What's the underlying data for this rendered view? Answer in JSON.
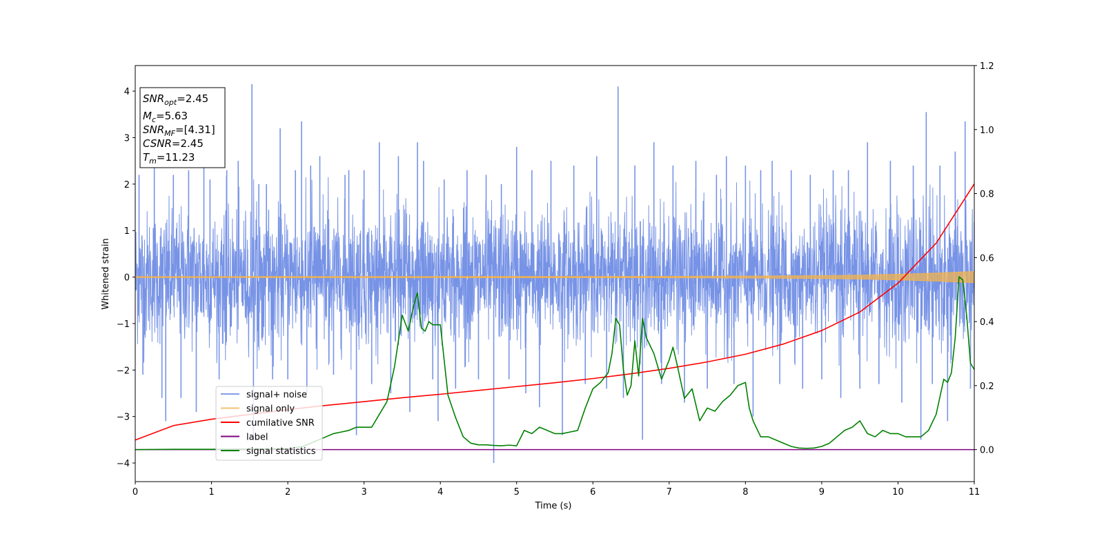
{
  "chart_data": {
    "type": "line",
    "xlabel": "Time (s)",
    "ylabel": "Whitened strain",
    "xlim": [
      0,
      11
    ],
    "ylim_left": [
      -4.4,
      4.55
    ],
    "ylim_right": [
      -0.1,
      1.2
    ],
    "x_ticks": [
      "0",
      "1",
      "2",
      "3",
      "4",
      "5",
      "6",
      "7",
      "8",
      "9",
      "10",
      "11"
    ],
    "y_ticks_left": [
      "−4",
      "−3",
      "−2",
      "−1",
      "0",
      "1",
      "2",
      "3",
      "4"
    ],
    "y_ticks_right": [
      "0.0",
      "0.2",
      "0.4",
      "0.6",
      "0.8",
      "1.0",
      "1.2"
    ],
    "grid": false,
    "legend_position": "lower-left",
    "annotation": {
      "snr_opt": {
        "base": "SNR",
        "sub": "opt",
        "value": "=2.45"
      },
      "mc": {
        "base": "M",
        "sub": "c",
        "value": "=5.63"
      },
      "snr_mf": {
        "base": "SNR",
        "sub": "MF",
        "value": "=[4.31]"
      },
      "csnr": {
        "base": "CSNR",
        "value": "=2.45"
      },
      "tm": {
        "base": "T",
        "sub": "m",
        "value": "=11.23"
      }
    },
    "series": [
      {
        "name": "signal+ noise",
        "color": "#7793e6",
        "axis": "left",
        "noise_envelope": {
          "typical_min": -2.0,
          "typical_max": 2.2
        },
        "spikes": [
          [
            0.05,
            2.2
          ],
          [
            0.1,
            -2.1
          ],
          [
            0.25,
            2.7
          ],
          [
            0.35,
            -2.6
          ],
          [
            0.4,
            -3.1
          ],
          [
            0.5,
            2.2
          ],
          [
            0.6,
            -2.6
          ],
          [
            0.7,
            2.3
          ],
          [
            0.8,
            -2.9
          ],
          [
            0.9,
            2.5
          ],
          [
            0.98,
            2.1
          ],
          [
            1.1,
            -2.2
          ],
          [
            1.2,
            2.3
          ],
          [
            1.35,
            2.5
          ],
          [
            1.53,
            4.15
          ],
          [
            1.55,
            -3.5
          ],
          [
            1.62,
            2.0
          ],
          [
            1.72,
            2.0
          ],
          [
            1.8,
            -2.2
          ],
          [
            1.9,
            3.2
          ],
          [
            2.0,
            -2.2
          ],
          [
            2.1,
            2.3
          ],
          [
            2.18,
            3.35
          ],
          [
            2.25,
            -2.5
          ],
          [
            2.3,
            2.4
          ],
          [
            2.42,
            2.6
          ],
          [
            2.6,
            -2.1
          ],
          [
            2.75,
            2.2
          ],
          [
            2.8,
            2.3
          ],
          [
            2.9,
            -3.4
          ],
          [
            3.0,
            2.3
          ],
          [
            3.1,
            -2.3
          ],
          [
            3.2,
            2.9
          ],
          [
            3.35,
            -2.5
          ],
          [
            3.45,
            2.6
          ],
          [
            3.6,
            -2.9
          ],
          [
            3.7,
            2.9
          ],
          [
            3.78,
            2.5
          ],
          [
            3.9,
            -2.2
          ],
          [
            3.97,
            -3.1
          ],
          [
            4.05,
            2.1
          ],
          [
            4.2,
            -2.4
          ],
          [
            4.35,
            2.3
          ],
          [
            4.5,
            -2.2
          ],
          [
            4.6,
            2.2
          ],
          [
            4.7,
            -4.0
          ],
          [
            4.8,
            2.0
          ],
          [
            4.9,
            -2.2
          ],
          [
            5.0,
            2.8
          ],
          [
            5.12,
            -2.5
          ],
          [
            5.2,
            2.3
          ],
          [
            5.3,
            -2.8
          ],
          [
            5.45,
            2.5
          ],
          [
            5.6,
            -3.4
          ],
          [
            5.75,
            2.4
          ],
          [
            5.9,
            -2.3
          ],
          [
            6.05,
            2.6
          ],
          [
            6.18,
            -2.4
          ],
          [
            6.33,
            4.1
          ],
          [
            6.4,
            -2.6
          ],
          [
            6.55,
            2.4
          ],
          [
            6.65,
            -3.5
          ],
          [
            6.8,
            2.9
          ],
          [
            6.9,
            -2.3
          ],
          [
            7.05,
            2.4
          ],
          [
            7.2,
            -2.7
          ],
          [
            7.35,
            2.5
          ],
          [
            7.5,
            -2.4
          ],
          [
            7.62,
            2.2
          ],
          [
            7.75,
            2.6
          ],
          [
            7.85,
            -2.3
          ],
          [
            8.0,
            2.4
          ],
          [
            8.1,
            -3.0
          ],
          [
            8.2,
            2.3
          ],
          [
            8.35,
            2.5
          ],
          [
            8.45,
            -2.3
          ],
          [
            8.6,
            2.3
          ],
          [
            8.75,
            -2.4
          ],
          [
            8.85,
            2.2
          ],
          [
            9.0,
            -2.2
          ],
          [
            9.15,
            2.3
          ],
          [
            9.25,
            -2.6
          ],
          [
            9.35,
            2.3
          ],
          [
            9.5,
            -2.4
          ],
          [
            9.6,
            2.9
          ],
          [
            9.75,
            -2.3
          ],
          [
            9.9,
            2.5
          ],
          [
            10.05,
            -2.7
          ],
          [
            10.2,
            2.4
          ],
          [
            10.3,
            -3.5
          ],
          [
            10.37,
            3.55
          ],
          [
            10.45,
            -2.3
          ],
          [
            10.55,
            2.4
          ],
          [
            10.65,
            -3.1
          ],
          [
            10.75,
            2.7
          ],
          [
            10.88,
            3.35
          ],
          [
            10.95,
            -2.4
          ]
        ]
      },
      {
        "name": "signal only",
        "color": "#f2b34d",
        "axis": "left",
        "envelope_x": [
          0,
          7,
          8,
          9,
          9.5,
          10,
          10.5,
          11
        ],
        "envelope_amplitude": [
          0.01,
          0.015,
          0.02,
          0.03,
          0.04,
          0.06,
          0.085,
          0.12
        ]
      },
      {
        "name": "cumilative SNR",
        "color": "#ff0000",
        "axis": "right",
        "x": [
          0,
          0.5,
          1,
          1.5,
          2,
          2.5,
          3,
          3.5,
          4,
          4.5,
          5,
          5.5,
          6,
          6.5,
          7,
          7.5,
          8,
          8.5,
          9,
          9.5,
          10,
          10.5,
          11
        ],
        "y": [
          0.03,
          0.075,
          0.095,
          0.11,
          0.125,
          0.138,
          0.15,
          0.162,
          0.173,
          0.185,
          0.197,
          0.209,
          0.222,
          0.237,
          0.254,
          0.274,
          0.298,
          0.33,
          0.372,
          0.43,
          0.52,
          0.645,
          0.83
        ]
      },
      {
        "name": "label",
        "color": "#800080",
        "axis": "right",
        "x": [
          0,
          11
        ],
        "y": [
          0,
          0
        ]
      },
      {
        "name": "signal statistics",
        "color": "#008000",
        "axis": "right",
        "x": [
          0,
          0.5,
          1,
          1.5,
          2,
          2.2,
          2.4,
          2.5,
          2.6,
          2.7,
          2.8,
          2.9,
          3.0,
          3.1,
          3.2,
          3.3,
          3.4,
          3.5,
          3.58,
          3.65,
          3.7,
          3.75,
          3.8,
          3.85,
          3.9,
          4.0,
          4.1,
          4.2,
          4.3,
          4.4,
          4.5,
          4.6,
          4.7,
          4.8,
          4.9,
          5.0,
          5.1,
          5.2,
          5.3,
          5.4,
          5.5,
          5.6,
          5.7,
          5.8,
          5.9,
          6.0,
          6.1,
          6.2,
          6.25,
          6.3,
          6.35,
          6.4,
          6.45,
          6.5,
          6.55,
          6.6,
          6.65,
          6.7,
          6.8,
          6.9,
          7.0,
          7.05,
          7.1,
          7.2,
          7.3,
          7.4,
          7.5,
          7.6,
          7.7,
          7.8,
          7.9,
          8.0,
          8.05,
          8.1,
          8.2,
          8.3,
          8.4,
          8.5,
          8.6,
          8.7,
          8.8,
          8.9,
          9.0,
          9.1,
          9.2,
          9.3,
          9.4,
          9.5,
          9.6,
          9.7,
          9.8,
          9.9,
          10.0,
          10.1,
          10.2,
          10.3,
          10.4,
          10.5,
          10.6,
          10.65,
          10.7,
          10.75,
          10.8,
          10.85,
          10.9,
          10.95,
          11.0
        ],
        "y": [
          0.0,
          0.001,
          0.001,
          0.002,
          0.003,
          0.01,
          0.03,
          0.04,
          0.05,
          0.055,
          0.06,
          0.07,
          0.07,
          0.07,
          0.11,
          0.15,
          0.26,
          0.42,
          0.37,
          0.45,
          0.49,
          0.38,
          0.37,
          0.4,
          0.39,
          0.39,
          0.17,
          0.1,
          0.04,
          0.02,
          0.015,
          0.015,
          0.013,
          0.012,
          0.014,
          0.012,
          0.06,
          0.05,
          0.07,
          0.06,
          0.05,
          0.05,
          0.055,
          0.06,
          0.13,
          0.19,
          0.21,
          0.24,
          0.3,
          0.41,
          0.39,
          0.25,
          0.17,
          0.2,
          0.34,
          0.23,
          0.41,
          0.35,
          0.3,
          0.22,
          0.28,
          0.32,
          0.27,
          0.16,
          0.19,
          0.09,
          0.13,
          0.12,
          0.15,
          0.17,
          0.2,
          0.21,
          0.13,
          0.09,
          0.04,
          0.04,
          0.03,
          0.02,
          0.01,
          0.005,
          0.004,
          0.005,
          0.01,
          0.02,
          0.04,
          0.06,
          0.07,
          0.09,
          0.05,
          0.04,
          0.06,
          0.05,
          0.05,
          0.04,
          0.04,
          0.04,
          0.06,
          0.11,
          0.22,
          0.21,
          0.24,
          0.35,
          0.54,
          0.53,
          0.42,
          0.27,
          0.25
        ]
      }
    ]
  }
}
